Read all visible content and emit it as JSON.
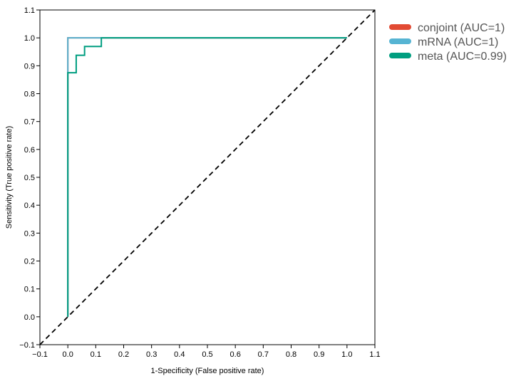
{
  "chart_data": {
    "type": "line",
    "title": "",
    "xlabel": "1-Specificity (False positive rate)",
    "ylabel": "Sensitivity (True positive rate)",
    "xlim": [
      -0.1,
      1.1
    ],
    "ylim": [
      -0.1,
      1.1
    ],
    "xticks": [
      -0.1,
      0.0,
      0.1,
      0.2,
      0.3,
      0.4,
      0.5,
      0.6,
      0.7,
      0.8,
      0.9,
      1.0,
      1.1
    ],
    "yticks": [
      -0.1,
      0.0,
      0.1,
      0.2,
      0.3,
      0.4,
      0.5,
      0.6,
      0.7,
      0.8,
      0.9,
      1.0,
      1.1
    ],
    "xtick_labels": [
      "−0.1",
      "0.0",
      "0.1",
      "0.2",
      "0.3",
      "0.4",
      "0.5",
      "0.6",
      "0.7",
      "0.8",
      "0.9",
      "1.0",
      "1.1"
    ],
    "ytick_labels": [
      "−0.1",
      "0.0",
      "0.1",
      "0.2",
      "0.3",
      "0.4",
      "0.5",
      "0.6",
      "0.7",
      "0.8",
      "0.9",
      "1.0",
      "1.1"
    ],
    "grid": false,
    "legend_position": "outside-top-right",
    "diagonal": {
      "from": [
        -0.1,
        -0.1
      ],
      "to": [
        1.1,
        1.1
      ],
      "style": "dashed",
      "color": "#000000"
    },
    "series": [
      {
        "name": "conjoint (AUC=1)",
        "color": "#e24a33",
        "x": [
          0.0,
          0.0,
          1.0
        ],
        "y": [
          0.0,
          1.0,
          1.0
        ]
      },
      {
        "name": "mRNA (AUC=1)",
        "color": "#56b4d3",
        "x": [
          0.0,
          0.0,
          1.0
        ],
        "y": [
          0.0,
          1.0,
          1.0
        ]
      },
      {
        "name": "meta (AUC=0.99)",
        "color": "#009e80",
        "x": [
          0.0,
          0.0,
          0.03,
          0.03,
          0.06,
          0.06,
          0.12,
          0.12,
          1.0
        ],
        "y": [
          0.0,
          0.875,
          0.875,
          0.9375,
          0.9375,
          0.969,
          0.969,
          1.0,
          1.0
        ]
      }
    ]
  }
}
